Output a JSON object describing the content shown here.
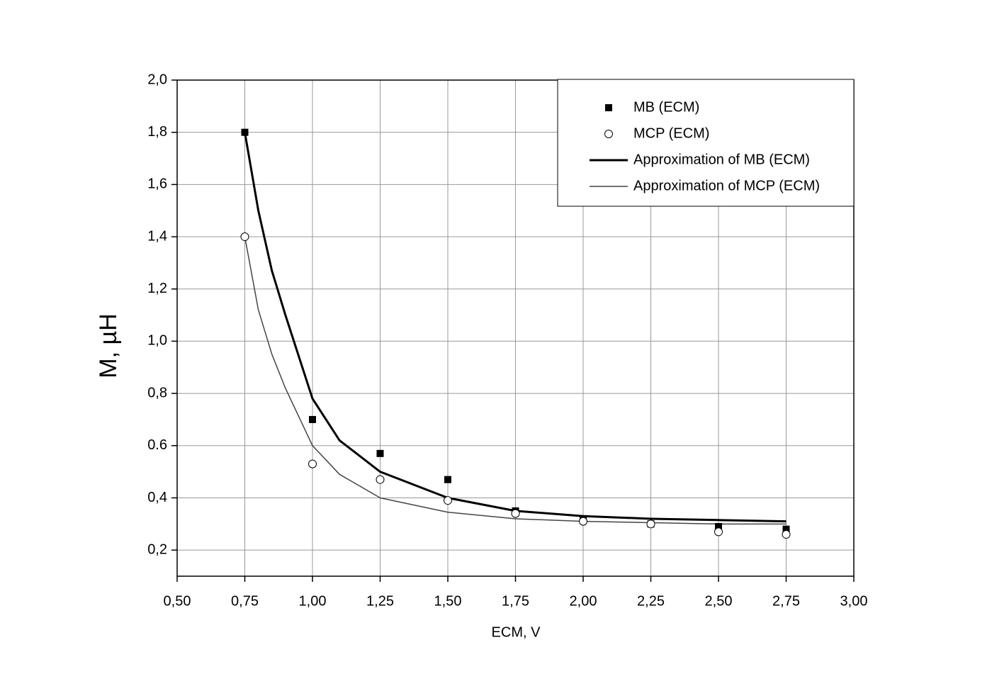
{
  "chart_data": {
    "type": "line",
    "x_label": "ECM, V",
    "y_label": "M, µH",
    "xlim": [
      0.5,
      3.0
    ],
    "ylim": [
      0.1,
      2.0
    ],
    "xticks": [
      {
        "value": 0.5,
        "label": "0,50"
      },
      {
        "value": 0.75,
        "label": "0,75"
      },
      {
        "value": 1.0,
        "label": "1,00"
      },
      {
        "value": 1.25,
        "label": "1,25"
      },
      {
        "value": 1.5,
        "label": "1,50"
      },
      {
        "value": 1.75,
        "label": "1,75"
      },
      {
        "value": 2.0,
        "label": "2,00"
      },
      {
        "value": 2.25,
        "label": "2,25"
      },
      {
        "value": 2.5,
        "label": "2,50"
      },
      {
        "value": 2.75,
        "label": "2,75"
      },
      {
        "value": 3.0,
        "label": "3,00"
      }
    ],
    "yticks": [
      {
        "value": 0.2,
        "label": "0,2"
      },
      {
        "value": 0.4,
        "label": "0,4"
      },
      0.6,
      {
        "value": 0.8,
        "label": "0,8"
      },
      {
        "value": 1.0,
        "label": "1,0"
      },
      {
        "value": 1.2,
        "label": "1,2"
      },
      {
        "value": 1.4,
        "label": "1,4"
      },
      {
        "value": 1.6,
        "label": "1,6"
      },
      {
        "value": 1.8,
        "label": "1,8"
      },
      {
        "value": 2.0,
        "label": "2,0"
      }
    ],
    "grid": true,
    "legend": "upper right",
    "series": [
      {
        "name": "MB (ECM)",
        "kind": "scatter",
        "marker": "square",
        "color": "#000000",
        "x": [
          0.75,
          1.0,
          1.25,
          1.5,
          1.75,
          2.0,
          2.25,
          2.5,
          2.75
        ],
        "values": [
          1.8,
          0.7,
          0.57,
          0.47,
          0.35,
          0.32,
          0.3,
          0.29,
          0.28
        ]
      },
      {
        "name": "MCP (ECM)",
        "kind": "scatter",
        "marker": "circle",
        "color": "#000000",
        "x": [
          0.75,
          1.0,
          1.25,
          1.5,
          1.75,
          2.0,
          2.25,
          2.5,
          2.75
        ],
        "values": [
          1.4,
          0.53,
          0.47,
          0.39,
          0.34,
          0.31,
          0.3,
          0.27,
          0.26
        ]
      },
      {
        "name": "Approximation of MB (ECM)",
        "kind": "line",
        "color": "#000000",
        "x": [
          0.75,
          0.8,
          0.85,
          0.9,
          1.0,
          1.1,
          1.25,
          1.5,
          1.75,
          2.0,
          2.25,
          2.5,
          2.75
        ],
        "values": [
          1.8,
          1.5,
          1.27,
          1.1,
          0.78,
          0.62,
          0.5,
          0.4,
          0.35,
          0.33,
          0.32,
          0.315,
          0.31
        ]
      },
      {
        "name": "Approximation of MCP (ECM)",
        "kind": "line",
        "color": "#444444",
        "x": [
          0.75,
          0.8,
          0.85,
          0.9,
          1.0,
          1.1,
          1.25,
          1.5,
          1.75,
          2.0,
          2.25,
          2.5,
          2.75
        ],
        "values": [
          1.4,
          1.12,
          0.95,
          0.82,
          0.6,
          0.49,
          0.4,
          0.345,
          0.32,
          0.31,
          0.305,
          0.3,
          0.3
        ]
      }
    ]
  }
}
